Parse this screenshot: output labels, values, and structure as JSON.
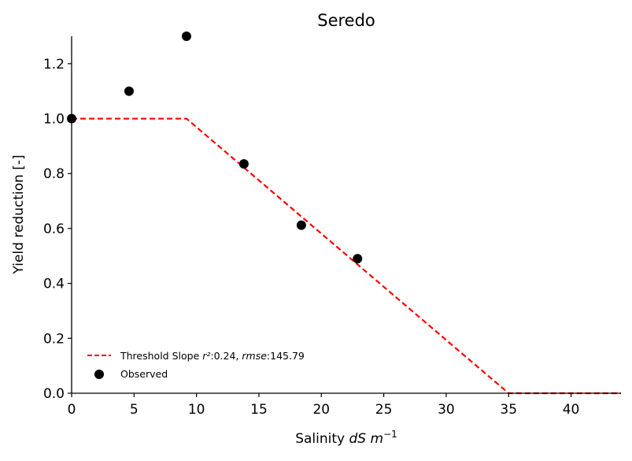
{
  "chart_data": {
    "type": "line",
    "title": "Seredo",
    "xlabel": {
      "prefix": "Salinity ",
      "unit": "dS m",
      "exponent": "−1"
    },
    "ylabel": "Yield reduction [-]",
    "xlim": [
      0,
      44
    ],
    "ylim": [
      0,
      1.3
    ],
    "xticks": [
      0,
      5,
      10,
      15,
      20,
      25,
      30,
      35,
      40
    ],
    "yticks": [
      0.0,
      0.2,
      0.4,
      0.6,
      0.8,
      1.0,
      1.2
    ],
    "xtick_labels": [
      "0",
      "5",
      "10",
      "15",
      "20",
      "25",
      "30",
      "35",
      "40"
    ],
    "ytick_labels": [
      "0.0",
      "0.2",
      "0.4",
      "0.6",
      "0.8",
      "1.0",
      "1.2"
    ],
    "grid": false,
    "legend_position": "lower-left",
    "series": [
      {
        "name": "Threshold Slope",
        "legend": {
          "prefix": "Threshold Slope ",
          "r2_label": "r²",
          "r2_value": ":0.24, ",
          "rmse_label": "rmse",
          "rmse_value": ":145.79"
        },
        "kind": "line",
        "style": "dashed",
        "color": "#ff0000",
        "x": [
          0,
          9.2,
          35,
          44
        ],
        "y": [
          1.0,
          1.0,
          0.0,
          0.0
        ]
      },
      {
        "name": "Observed",
        "kind": "scatter",
        "color": "#000000",
        "x": [
          0,
          4.6,
          9.2,
          13.8,
          18.4,
          22.9
        ],
        "y": [
          1.0,
          1.1,
          1.3,
          0.835,
          0.612,
          0.49
        ]
      }
    ]
  }
}
